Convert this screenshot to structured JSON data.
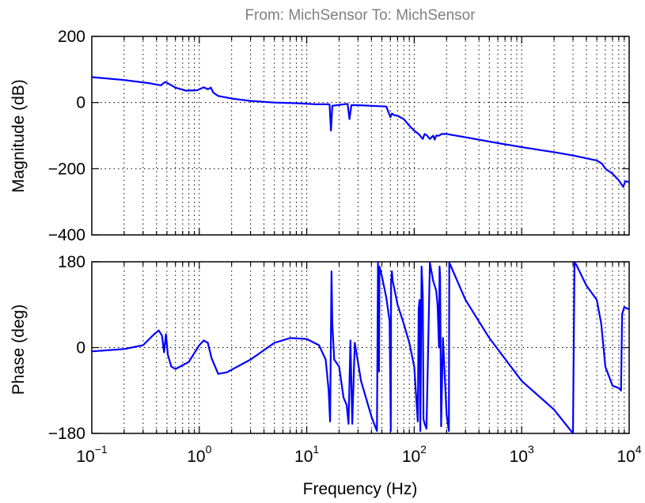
{
  "title": "From: MichSensor  To: MichSensor",
  "colors": {
    "series": "#0000ff",
    "title": "#7f7f7f"
  },
  "chart_data": [
    {
      "type": "line",
      "name": "magnitude",
      "ylabel": "Magnitude (dB)",
      "xlabel": "",
      "xscale": "log",
      "xlim": [
        0.1,
        10000
      ],
      "ylim": [
        -400,
        200
      ],
      "xticks": [
        {
          "base": "10",
          "exp": "−1",
          "value": 0.1
        },
        {
          "base": "10",
          "exp": "0",
          "value": 1
        },
        {
          "base": "10",
          "exp": "1",
          "value": 10
        },
        {
          "base": "10",
          "exp": "2",
          "value": 100
        },
        {
          "base": "10",
          "exp": "3",
          "value": 1000
        },
        {
          "base": "10",
          "exp": "4",
          "value": 10000
        }
      ],
      "yticks": [
        {
          "label": "200",
          "value": 200
        },
        {
          "label": "0",
          "value": 0
        },
        {
          "label": "−200",
          "value": -200
        },
        {
          "label": "−400",
          "value": -400
        }
      ],
      "grid": true,
      "x": [
        0.1,
        0.2,
        0.35,
        0.44,
        0.48,
        0.5,
        0.53,
        0.6,
        0.75,
        0.95,
        1.1,
        1.2,
        1.28,
        1.35,
        1.5,
        2,
        3,
        5,
        8,
        12,
        16.3,
        16.8,
        17.3,
        20,
        24,
        25,
        26,
        30,
        40,
        55,
        60,
        62,
        65,
        70,
        80,
        90,
        100,
        110,
        120,
        125,
        130,
        140,
        150,
        155,
        160,
        170,
        180,
        200,
        300,
        500,
        1000,
        2000,
        3000,
        5000,
        5600,
        6000,
        7000,
        8000,
        8800,
        9200,
        10000
      ],
      "values": [
        77,
        68,
        58,
        52,
        62,
        60,
        55,
        45,
        36,
        37,
        46,
        40,
        45,
        30,
        20,
        12,
        5,
        0,
        -2,
        -5,
        -5,
        -85,
        -10,
        -7,
        -4,
        -50,
        -8,
        -8,
        -10,
        -12,
        -44,
        -33,
        -38,
        -40,
        -50,
        -70,
        -85,
        -95,
        -110,
        -95,
        -98,
        -110,
        -100,
        -112,
        -100,
        -100,
        -95,
        -95,
        -105,
        -118,
        -135,
        -150,
        -160,
        -175,
        -185,
        -200,
        -215,
        -235,
        -255,
        -238,
        -240
      ]
    },
    {
      "type": "line",
      "name": "phase",
      "ylabel": "Phase (deg)",
      "xlabel": "Frequency  (Hz)",
      "xscale": "log",
      "xlim": [
        0.1,
        10000
      ],
      "ylim": [
        -180,
        180
      ],
      "xticks": [
        {
          "base": "10",
          "exp": "−1",
          "value": 0.1
        },
        {
          "base": "10",
          "exp": "0",
          "value": 1
        },
        {
          "base": "10",
          "exp": "1",
          "value": 10
        },
        {
          "base": "10",
          "exp": "2",
          "value": 100
        },
        {
          "base": "10",
          "exp": "3",
          "value": 1000
        },
        {
          "base": "10",
          "exp": "4",
          "value": 10000
        }
      ],
      "yticks": [
        {
          "label": "180",
          "value": 180
        },
        {
          "label": "0",
          "value": 0
        },
        {
          "label": "−180",
          "value": -180
        }
      ],
      "grid": true,
      "x": [
        0.1,
        0.2,
        0.3,
        0.38,
        0.42,
        0.45,
        0.47,
        0.49,
        0.51,
        0.55,
        0.6,
        0.8,
        1.0,
        1.1,
        1.2,
        1.3,
        1.5,
        1.8,
        3,
        5,
        7,
        10,
        13,
        15,
        16,
        16.5,
        17,
        17.3,
        18,
        20,
        22,
        23.5,
        24.5,
        25.5,
        26.5,
        28,
        32,
        40,
        45,
        46,
        47,
        47.5,
        50,
        55,
        59,
        60.5,
        61,
        62,
        63,
        70,
        80,
        90,
        100,
        108,
        110,
        112,
        114,
        117,
        120,
        122,
        125,
        130,
        140,
        150,
        160,
        165,
        170,
        172,
        174,
        178,
        185,
        200,
        210,
        212,
        215,
        220,
        300,
        500,
        1000,
        2000,
        3000,
        3100,
        3200,
        4000,
        5000,
        5500,
        6000,
        7000,
        8000,
        8400,
        8600,
        9000,
        10000
      ],
      "values": [
        -8,
        -3,
        5,
        28,
        36,
        25,
        -10,
        28,
        -15,
        -40,
        -45,
        -30,
        5,
        15,
        10,
        -22,
        -55,
        -52,
        -25,
        10,
        20,
        18,
        5,
        -25,
        -90,
        -155,
        160,
        50,
        -25,
        -40,
        -105,
        -120,
        -160,
        15,
        -160,
        10,
        -70,
        -145,
        -175,
        178,
        -50,
        170,
        150,
        105,
        55,
        -175,
        135,
        160,
        140,
        90,
        50,
        10,
        -40,
        -155,
        80,
        100,
        -175,
        170,
        110,
        -150,
        -160,
        -170,
        178,
        140,
        120,
        90,
        0,
        170,
        150,
        -165,
        20,
        -140,
        -175,
        178,
        175,
        170,
        100,
        20,
        -70,
        -130,
        -180,
        178,
        175,
        130,
        100,
        50,
        -40,
        -80,
        -85,
        -90,
        70,
        85,
        80
      ]
    }
  ]
}
